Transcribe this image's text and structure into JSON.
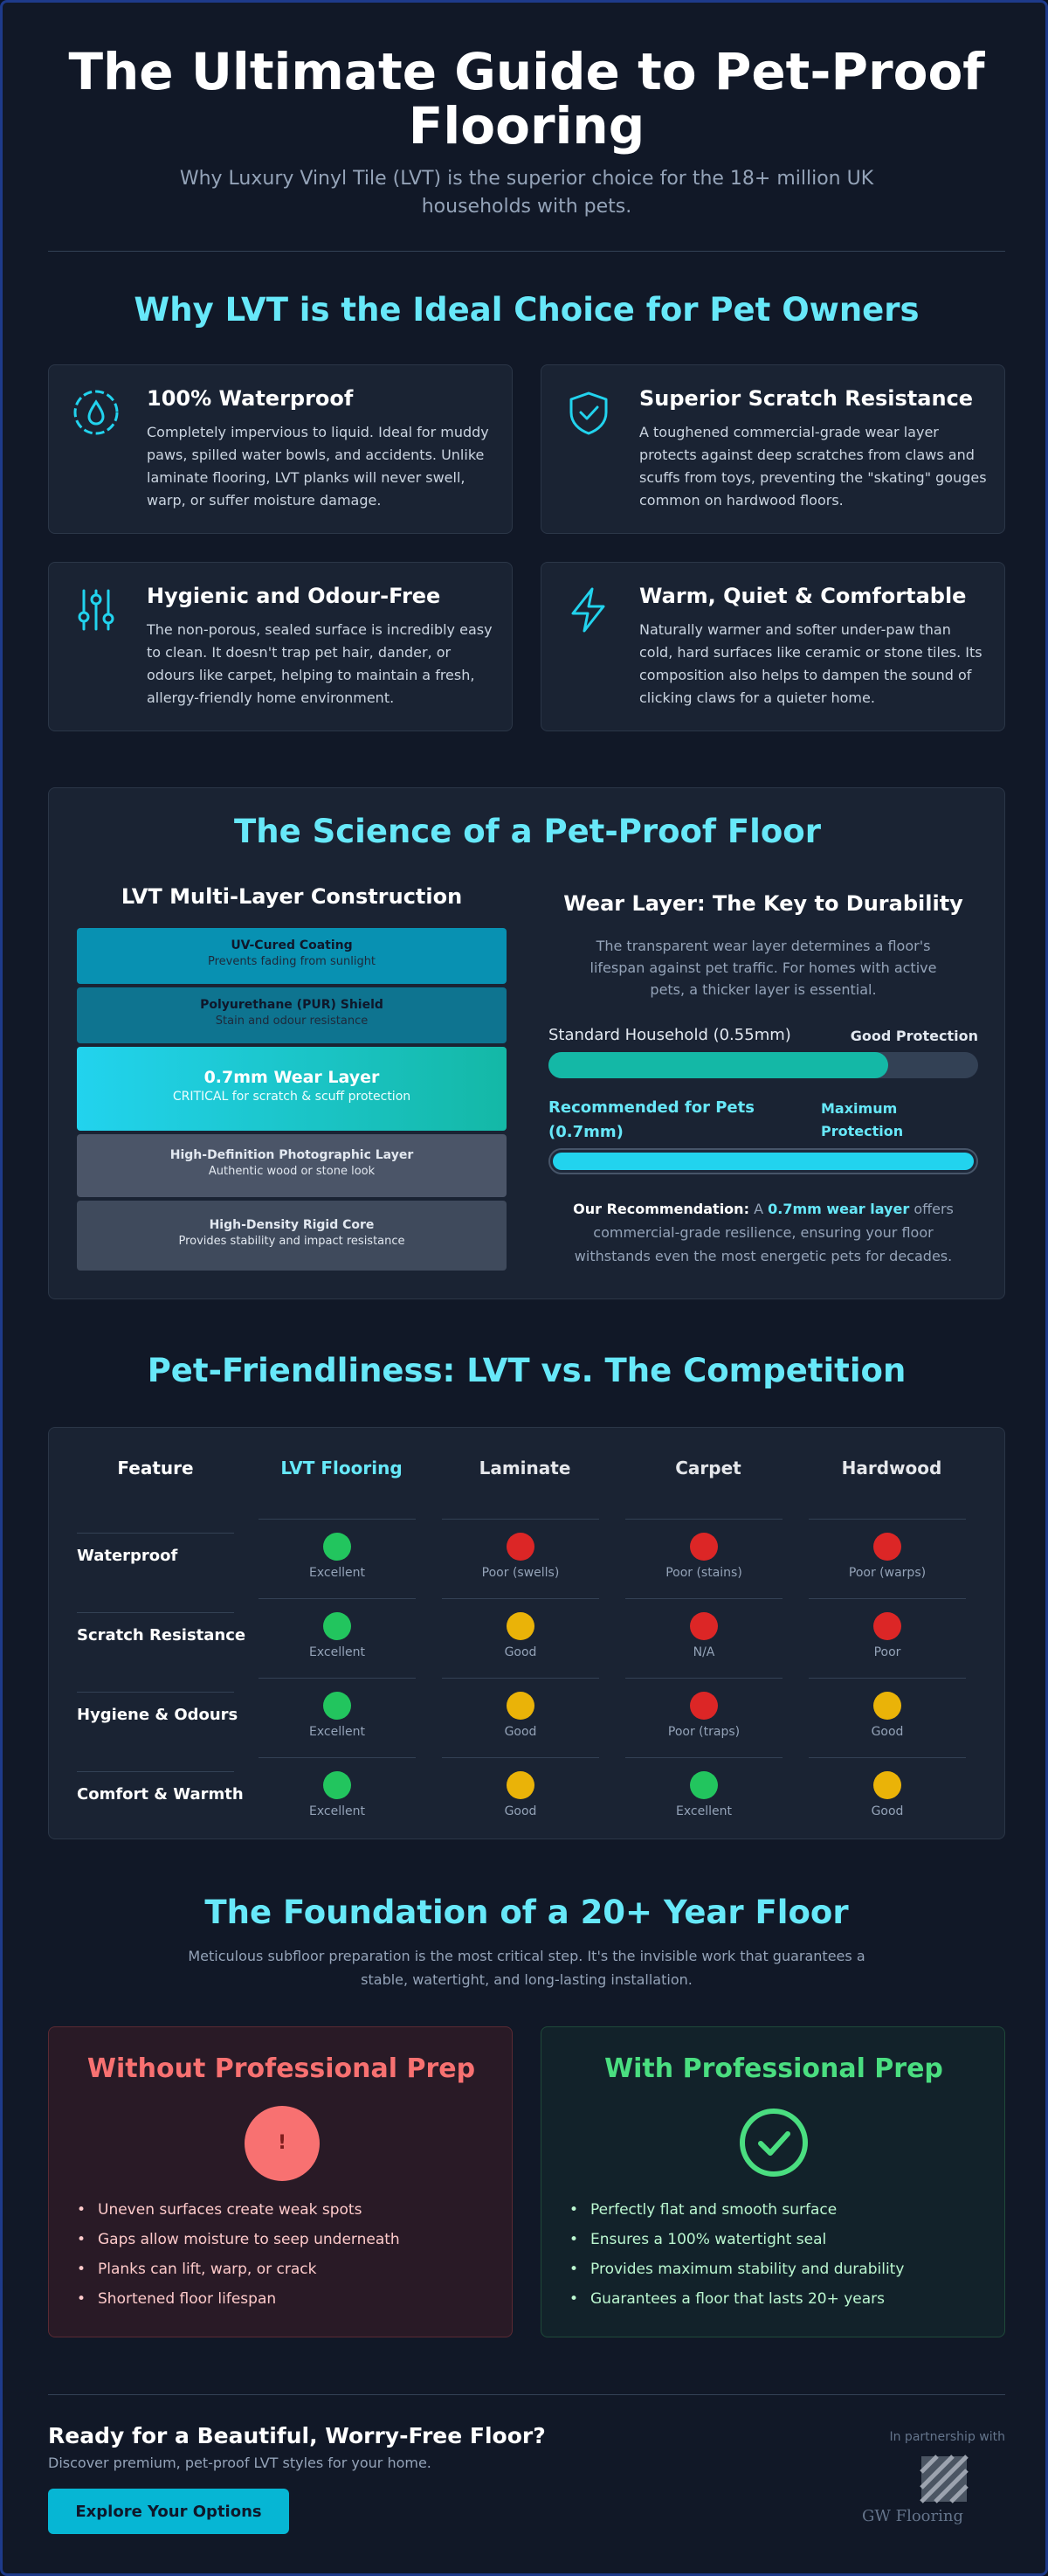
{
  "header": {
    "title": "The Ultimate Guide to Pet-Proof Flooring",
    "subtitle": "Why Luxury Vinyl Tile (LVT) is the superior choice for the 18+ million UK households with pets."
  },
  "why": {
    "title": "Why LVT is the Ideal Choice for Pet Owners",
    "cards": [
      {
        "title": "100% Waterproof",
        "text": "Completely impervious to liquid. Ideal for muddy paws, spilled water bowls, and accidents. Unlike laminate flooring, LVT planks will never swell, warp, or suffer moisture damage.",
        "icon": "water-drop-icon"
      },
      {
        "title": "Superior Scratch Resistance",
        "text": "A toughened commercial-grade wear layer protects against deep scratches from claws and scuffs from toys, preventing the \"skating\" gouges common on hardwood floors.",
        "icon": "shield-check-icon"
      },
      {
        "title": "Hygienic and Odour-Free",
        "text": "The non-porous, sealed surface is incredibly easy to clean. It doesn't trap pet hair, dander, or odours like carpet, helping to maintain a fresh, allergy-friendly home environment.",
        "icon": "sliders-icon"
      },
      {
        "title": "Warm, Quiet & Comfortable",
        "text": "Naturally warmer and softer under-paw than cold, hard surfaces like ceramic or stone tiles. Its composition also helps to dampen the sound of clicking claws for a quieter home.",
        "icon": "lightning-icon"
      }
    ]
  },
  "science": {
    "title": "The Science of a Pet-Proof Floor",
    "layers_title": "LVT Multi-Layer Construction",
    "layers": [
      {
        "title": "UV-Cured Coating",
        "sub": "Prevents fading from sunlight"
      },
      {
        "title": "Polyurethane (PUR) Shield",
        "sub": "Stain and odour resistance"
      },
      {
        "title": "0.7mm Wear Layer",
        "sub": "CRITICAL for scratch & scuff protection"
      },
      {
        "title": "High-Definition Photographic Layer",
        "sub": "Authentic wood or stone look"
      },
      {
        "title": "High-Density Rigid Core",
        "sub": "Provides stability and impact resistance"
      }
    ],
    "wear_title": "Wear Layer: The Key to Durability",
    "wear_text": "The transparent wear layer determines a floor's lifespan against pet traffic. For homes with active pets, a thicker layer is essential.",
    "bars": [
      {
        "label": "Standard Household (0.55mm)",
        "rating": "Good Protection",
        "fill": 0.79
      },
      {
        "label": "Recommended for Pets (0.7mm)",
        "rating": "Maximum Protection",
        "fill": 1.0
      }
    ],
    "rec_prefix": "Our Recommendation:",
    "rec_a": "A",
    "rec_highlight": "0.7mm wear layer",
    "rec_suffix": "offers commercial-grade resilience, ensuring your floor withstands even the most energetic pets for decades."
  },
  "compare": {
    "title": "Pet-Friendliness: LVT vs. The Competition",
    "columns": [
      "Feature",
      "LVT Flooring",
      "Laminate",
      "Carpet",
      "Hardwood"
    ],
    "rows": [
      {
        "feature": "Waterproof",
        "cells": [
          {
            "c": "#22c55e",
            "t": "Excellent"
          },
          {
            "c": "#dc2626",
            "t": "Poor (swells)"
          },
          {
            "c": "#dc2626",
            "t": "Poor (stains)"
          },
          {
            "c": "#dc2626",
            "t": "Poor (warps)"
          }
        ]
      },
      {
        "feature": "Scratch Resistance",
        "cells": [
          {
            "c": "#22c55e",
            "t": "Excellent"
          },
          {
            "c": "#eab308",
            "t": "Good"
          },
          {
            "c": "#dc2626",
            "t": "N/A"
          },
          {
            "c": "#dc2626",
            "t": "Poor"
          }
        ]
      },
      {
        "feature": "Hygiene & Odours",
        "cells": [
          {
            "c": "#22c55e",
            "t": "Excellent"
          },
          {
            "c": "#eab308",
            "t": "Good"
          },
          {
            "c": "#dc2626",
            "t": "Poor (traps)"
          },
          {
            "c": "#eab308",
            "t": "Good"
          }
        ]
      },
      {
        "feature": "Comfort & Warmth",
        "cells": [
          {
            "c": "#22c55e",
            "t": "Excellent"
          },
          {
            "c": "#eab308",
            "t": "Good"
          },
          {
            "c": "#22c55e",
            "t": "Excellent"
          },
          {
            "c": "#eab308",
            "t": "Good"
          }
        ]
      }
    ]
  },
  "foundation": {
    "title": "The Foundation of a 20+ Year Floor",
    "subtitle": "Meticulous subfloor preparation is the most critical step. It's the invisible work that guarantees a stable, watertight, and long-lasting installation.",
    "without": {
      "title": "Without Professional Prep",
      "icon_text": "!",
      "points": [
        "Uneven surfaces create weak spots",
        "Gaps allow moisture to seep underneath",
        "Planks can lift, warp, or crack",
        "Shortened floor lifespan"
      ]
    },
    "with": {
      "title": "With Professional Prep",
      "points": [
        "Perfectly flat and smooth surface",
        "Ensures a 100% watertight seal",
        "Provides maximum stability and durability",
        "Guarantees a floor that lasts 20+ years"
      ]
    }
  },
  "cta": {
    "title": "Ready for a Beautiful, Worry-Free Floor?",
    "subtitle": "Discover premium, pet-proof LVT styles for your home.",
    "button": "Explore Your Options",
    "partner_label": "In partnership with",
    "partner_name": "GW Flooring"
  },
  "colors": {
    "accent": "#67e8f9",
    "teal": "#14b8a6",
    "cyan": "#22d3ee",
    "red": "#f87171",
    "green": "#4ade80"
  }
}
